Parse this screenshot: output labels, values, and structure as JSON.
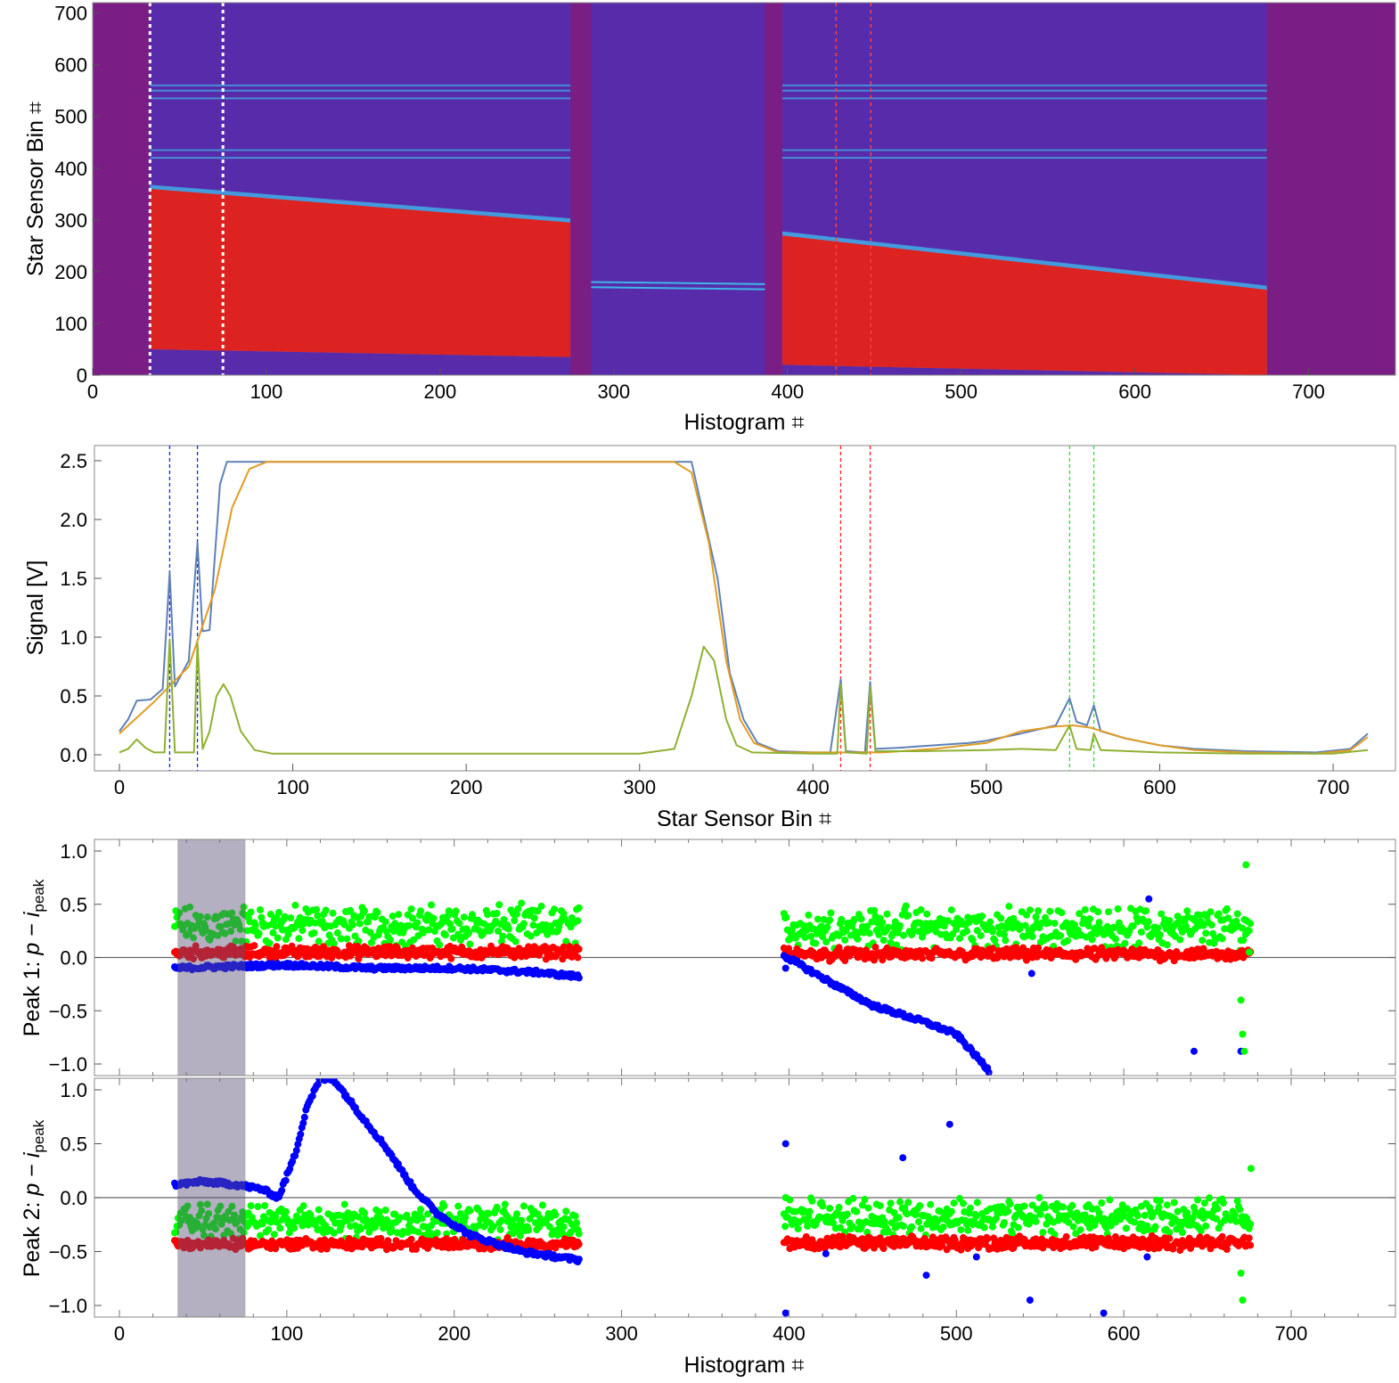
{
  "chart_data": [
    {
      "type": "heatmap",
      "xlabel": "Histogram ⌗",
      "ylabel": "Star Sensor Bin ⌗",
      "xlim": [
        0,
        750
      ],
      "ylim": [
        0,
        720
      ],
      "xticks": [
        0,
        100,
        200,
        300,
        400,
        500,
        600,
        700
      ],
      "yticks": [
        0,
        100,
        200,
        300,
        400,
        500,
        600,
        700
      ],
      "colors": {
        "background": "#7a1e86",
        "low": "#3d36c9",
        "mid": "#3fb6e8",
        "high": "#dd2222"
      },
      "segments": [
        {
          "x_range": [
            33,
            275
          ],
          "red_band": {
            "start_lower": 50,
            "start_upper": 360,
            "end_lower": 35,
            "end_upper": 295
          }
        },
        {
          "x_range": [
            287,
            387
          ],
          "thin_lines_y": [
            180,
            170
          ]
        },
        {
          "x_range": [
            397,
            676
          ],
          "red_band": {
            "start_lower": 20,
            "start_upper": 270,
            "end_lower": 0,
            "end_upper": 165
          }
        }
      ],
      "horizontal_lines_y": [
        420,
        435,
        535,
        550,
        560
      ],
      "markers": [
        {
          "x": 33,
          "color": "#ffffff",
          "style": "dotted"
        },
        {
          "x": 75,
          "color": "#ffffff",
          "style": "dotted"
        },
        {
          "x": 428,
          "color": "#ff4040",
          "style": "dotted"
        },
        {
          "x": 448,
          "color": "#ff4040",
          "style": "dotted"
        }
      ]
    },
    {
      "type": "line",
      "xlabel": "Star Sensor Bin ⌗",
      "ylabel": "Signal [V]",
      "xlim": [
        0,
        720
      ],
      "ylim": [
        0,
        2.5
      ],
      "xticks": [
        0,
        100,
        200,
        300,
        400,
        500,
        600,
        700
      ],
      "yticks": [
        "0.0",
        "0.5",
        "1.0",
        "1.5",
        "2.0",
        "2.5"
      ],
      "series": [
        {
          "color": "#5e81b5",
          "points": [
            [
              0,
              0.2
            ],
            [
              5,
              0.3
            ],
            [
              10,
              0.46
            ],
            [
              18,
              0.47
            ],
            [
              25,
              0.56
            ],
            [
              29,
              1.55
            ],
            [
              32,
              0.58
            ],
            [
              40,
              0.8
            ],
            [
              45,
              1.8
            ],
            [
              48,
              1.05
            ],
            [
              52,
              1.06
            ],
            [
              58,
              2.3
            ],
            [
              62,
              2.49
            ],
            [
              320,
              2.49
            ],
            [
              330,
              2.49
            ],
            [
              345,
              1.5
            ],
            [
              352,
              0.7
            ],
            [
              360,
              0.3
            ],
            [
              368,
              0.1
            ],
            [
              380,
              0.03
            ],
            [
              400,
              0.02
            ],
            [
              410,
              0.02
            ],
            [
              416,
              0.64
            ],
            [
              419,
              0.03
            ],
            [
              430,
              0.02
            ],
            [
              433,
              0.62
            ],
            [
              436,
              0.05
            ],
            [
              450,
              0.06
            ],
            [
              470,
              0.08
            ],
            [
              490,
              0.1
            ],
            [
              500,
              0.12
            ],
            [
              520,
              0.18
            ],
            [
              540,
              0.25
            ],
            [
              548,
              0.48
            ],
            [
              552,
              0.28
            ],
            [
              558,
              0.25
            ],
            [
              562,
              0.42
            ],
            [
              566,
              0.2
            ],
            [
              580,
              0.14
            ],
            [
              600,
              0.08
            ],
            [
              620,
              0.05
            ],
            [
              650,
              0.03
            ],
            [
              690,
              0.02
            ],
            [
              710,
              0.05
            ],
            [
              720,
              0.18
            ]
          ]
        },
        {
          "color": "#e19c24",
          "points": [
            [
              0,
              0.18
            ],
            [
              20,
              0.45
            ],
            [
              40,
              0.75
            ],
            [
              55,
              1.4
            ],
            [
              65,
              2.1
            ],
            [
              75,
              2.43
            ],
            [
              85,
              2.49
            ],
            [
              300,
              2.49
            ],
            [
              320,
              2.49
            ],
            [
              330,
              2.4
            ],
            [
              340,
              1.8
            ],
            [
              350,
              0.8
            ],
            [
              358,
              0.3
            ],
            [
              366,
              0.1
            ],
            [
              380,
              0.02
            ],
            [
              410,
              0.02
            ],
            [
              440,
              0.02
            ],
            [
              470,
              0.05
            ],
            [
              500,
              0.1
            ],
            [
              520,
              0.2
            ],
            [
              540,
              0.24
            ],
            [
              550,
              0.25
            ],
            [
              560,
              0.23
            ],
            [
              580,
              0.14
            ],
            [
              600,
              0.08
            ],
            [
              620,
              0.04
            ],
            [
              650,
              0.02
            ],
            [
              690,
              0.01
            ],
            [
              710,
              0.04
            ],
            [
              720,
              0.15
            ]
          ]
        },
        {
          "color": "#8fb032",
          "points": [
            [
              0,
              0.02
            ],
            [
              5,
              0.05
            ],
            [
              10,
              0.13
            ],
            [
              15,
              0.06
            ],
            [
              20,
              0.02
            ],
            [
              26,
              0.02
            ],
            [
              29,
              0.98
            ],
            [
              32,
              0.02
            ],
            [
              43,
              0.02
            ],
            [
              45,
              0.95
            ],
            [
              48,
              0.05
            ],
            [
              52,
              0.2
            ],
            [
              56,
              0.5
            ],
            [
              60,
              0.6
            ],
            [
              64,
              0.5
            ],
            [
              70,
              0.2
            ],
            [
              78,
              0.04
            ],
            [
              88,
              0.01
            ],
            [
              300,
              0.01
            ],
            [
              320,
              0.05
            ],
            [
              330,
              0.5
            ],
            [
              337,
              0.92
            ],
            [
              343,
              0.8
            ],
            [
              350,
              0.3
            ],
            [
              356,
              0.08
            ],
            [
              365,
              0.02
            ],
            [
              400,
              0.01
            ],
            [
              414,
              0.01
            ],
            [
              416,
              0.6
            ],
            [
              419,
              0.02
            ],
            [
              431,
              0.01
            ],
            [
              433,
              0.58
            ],
            [
              436,
              0.03
            ],
            [
              460,
              0.03
            ],
            [
              500,
              0.04
            ],
            [
              520,
              0.05
            ],
            [
              540,
              0.04
            ],
            [
              548,
              0.25
            ],
            [
              552,
              0.05
            ],
            [
              560,
              0.04
            ],
            [
              562,
              0.18
            ],
            [
              566,
              0.04
            ],
            [
              600,
              0.02
            ],
            [
              650,
              0.01
            ],
            [
              700,
              0.01
            ],
            [
              720,
              0.04
            ]
          ]
        }
      ],
      "markers": [
        {
          "x": 29,
          "color": "#2020ff",
          "style": "dashed"
        },
        {
          "x": 45,
          "color": "#2020ff",
          "style": "dashed"
        },
        {
          "x": 416,
          "color": "#ff2020",
          "style": "dashed"
        },
        {
          "x": 433,
          "color": "#ff2020",
          "style": "dashed"
        },
        {
          "x": 548,
          "color": "#33dd33",
          "style": "dashed"
        },
        {
          "x": 562,
          "color": "#33dd33",
          "style": "dashed"
        }
      ]
    },
    {
      "type": "scatter",
      "ylabel": "Peak 1: p − i_peak",
      "ylabel_parts": {
        "prefix": "Peak 1: ",
        "var": "p",
        "minus": " − ",
        "ivar": "i",
        "sub": "peak"
      },
      "xlim": [
        -15,
        760
      ],
      "ylim": [
        -1.07,
        1.1
      ],
      "yticks": [
        "1.0",
        "0.5",
        "0.0",
        "−0.5",
        "−1.0"
      ],
      "shaded_x_range": [
        35,
        75
      ],
      "series": [
        {
          "color": "#00ff00",
          "segments": [
            {
              "x_range": [
                33,
                275
              ],
              "base": 0.3,
              "noise": 0.22,
              "slope": 0
            },
            {
              "x_range": [
                397,
                676
              ],
              "base": 0.28,
              "noise": 0.22,
              "slope": 0
            }
          ]
        },
        {
          "color": "#ff0000",
          "segments": [
            {
              "x_range": [
                33,
                275
              ],
              "base": 0.05,
              "noise": 0.07,
              "slope": 0
            },
            {
              "x_range": [
                397,
                676
              ],
              "base": 0.03,
              "noise": 0.07,
              "slope": 0
            }
          ]
        },
        {
          "color": "#0000ff",
          "curves": [
            [
              [
                33,
                -0.1
              ],
              [
                75,
                -0.08
              ],
              [
                100,
                -0.07
              ],
              [
                150,
                -0.1
              ],
              [
                200,
                -0.1
              ],
              [
                250,
                -0.14
              ],
              [
                275,
                -0.18
              ]
            ],
            [
              [
                397,
                0.02
              ],
              [
                410,
                -0.1
              ],
              [
                430,
                -0.28
              ],
              [
                450,
                -0.45
              ],
              [
                480,
                -0.6
              ],
              [
                500,
                -0.72
              ],
              [
                520,
                -1.07
              ]
            ]
          ],
          "outliers": [
            [
              398,
              -0.1
            ],
            [
              545,
              -0.15
            ],
            [
              615,
              0.55
            ],
            [
              642,
              -0.88
            ],
            [
              670,
              -0.88
            ]
          ]
        }
      ],
      "extra_points": [
        [
          673,
          0.87
        ],
        [
          670,
          -0.4
        ],
        [
          671,
          -0.72
        ],
        [
          672,
          -0.88
        ],
        [
          675,
          0.05
        ]
      ]
    },
    {
      "type": "scatter",
      "xlabel": "Histogram ⌗",
      "ylabel": "Peak 2: p − i_peak",
      "ylabel_parts": {
        "prefix": "Peak 2: ",
        "var": "p",
        "minus": " − ",
        "ivar": "i",
        "sub": "peak"
      },
      "xlim": [
        -15,
        760
      ],
      "ylim": [
        -1.07,
        1.1
      ],
      "xticks": [
        0,
        100,
        200,
        300,
        400,
        500,
        600,
        700
      ],
      "yticks": [
        "1.0",
        "0.5",
        "0.0",
        "−0.5",
        "−1.0"
      ],
      "shaded_x_range": [
        35,
        75
      ],
      "series": [
        {
          "color": "#00ff00",
          "segments": [
            {
              "x_range": [
                33,
                275
              ],
              "base": -0.22,
              "noise": 0.18
            },
            {
              "x_range": [
                397,
                676
              ],
              "base": -0.18,
              "noise": 0.2
            }
          ]
        },
        {
          "color": "#ff0000",
          "segments": [
            {
              "x_range": [
                33,
                275
              ],
              "base": -0.43,
              "noise": 0.06
            },
            {
              "x_range": [
                397,
                676
              ],
              "base": -0.42,
              "noise": 0.07
            }
          ]
        },
        {
          "color": "#0000ff",
          "curves": [
            [
              [
                33,
                0.12
              ],
              [
                50,
                0.15
              ],
              [
                70,
                0.12
              ],
              [
                85,
                0.08
              ],
              [
                95,
                0.0
              ],
              [
                105,
                0.4
              ],
              [
                112,
                0.85
              ],
              [
                120,
                1.1
              ],
              [
                128,
                1.1
              ],
              [
                140,
                0.85
              ],
              [
                160,
                0.45
              ],
              [
                175,
                0.1
              ],
              [
                190,
                -0.15
              ],
              [
                210,
                -0.35
              ],
              [
                240,
                -0.5
              ],
              [
                275,
                -0.58
              ]
            ]
          ],
          "outliers": [
            [
              398,
              0.5
            ],
            [
              398,
              -1.07
            ],
            [
              422,
              -0.52
            ],
            [
              468,
              0.37
            ],
            [
              482,
              -0.72
            ],
            [
              496,
              0.68
            ],
            [
              512,
              -0.55
            ],
            [
              544,
              -0.95
            ],
            [
              588,
              -1.07
            ],
            [
              614,
              -0.55
            ]
          ]
        }
      ],
      "extra_points": [
        [
          676,
          0.27
        ],
        [
          671,
          -0.95
        ],
        [
          670,
          -0.7
        ],
        [
          398,
          0.0
        ]
      ]
    }
  ]
}
